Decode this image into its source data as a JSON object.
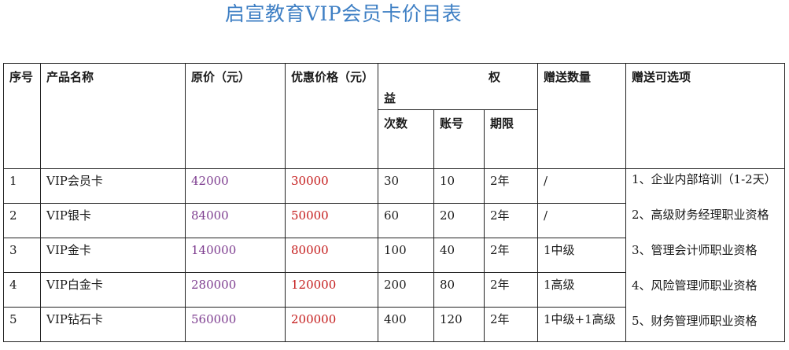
{
  "title": "启宣教育VIP会员卡价目表",
  "headers": {
    "seq": "序号",
    "product": "产品名称",
    "orig_price": "原价（元）",
    "disc_price": "优惠价格（元）",
    "rights_top": "权",
    "rights_bottom": "益",
    "times": "次数",
    "accounts": "账号",
    "period": "期限",
    "gift_qty": "赠送数量",
    "gift_options": "赠送可选项"
  },
  "rows": [
    {
      "seq": "1",
      "product": "VIP会员卡",
      "orig": "42000",
      "disc": "30000",
      "times": "30",
      "accounts": "10",
      "period": "2年",
      "gift": "/"
    },
    {
      "seq": "2",
      "product": "VIP银卡",
      "orig": "84000",
      "disc": "50000",
      "times": "60",
      "accounts": "20",
      "period": "2年",
      "gift": "/"
    },
    {
      "seq": "3",
      "product": "VIP金卡",
      "orig": "140000",
      "disc": "80000",
      "times": "100",
      "accounts": "40",
      "period": "2年",
      "gift": "1中级"
    },
    {
      "seq": "4",
      "product": "VIP白金卡",
      "orig": "280000",
      "disc": "120000",
      "times": "200",
      "accounts": "80",
      "period": "2年",
      "gift": "1高级"
    },
    {
      "seq": "5",
      "product": "VIP钻石卡",
      "orig": "560000",
      "disc": "200000",
      "times": "400",
      "accounts": "120",
      "period": "2年",
      "gift": "1中级+1高级"
    }
  ],
  "gift_options": [
    "1、企业内部培训（1-2天）",
    "2、高级财务经理职业资格",
    "3、管理会计师职业资格",
    "4、风险管理师职业资格",
    "5、财务管理师职业资格"
  ],
  "colors": {
    "title": "#3e7fc4",
    "original_price": "#7d3c8f",
    "discount_price": "#c41a1a"
  }
}
